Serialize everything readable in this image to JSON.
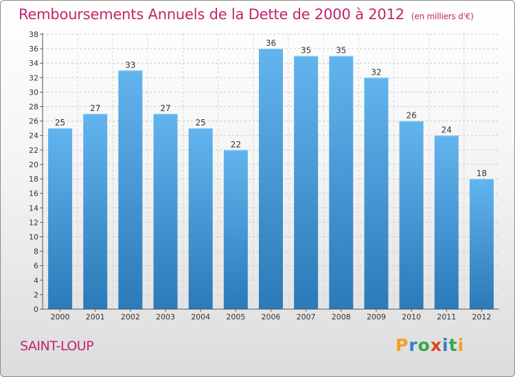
{
  "header": {
    "title": "Remboursements Annuels de la Dette de 2000 à 2012",
    "unit": "(en milliers d'€)"
  },
  "footer": {
    "commune": "SAINT-LOUP",
    "logo": [
      "P",
      "r",
      "o",
      "x",
      "i",
      "t",
      "i"
    ]
  },
  "colors": {
    "bar_top": "#62b4ee",
    "bar_bottom": "#2b7ab9",
    "title": "#c3236b"
  },
  "chart_data": {
    "type": "bar",
    "title": "Remboursements Annuels de la Dette de 2000 à 2012",
    "ylabel": "en milliers d'€",
    "xlabel": "",
    "categories": [
      "2000",
      "2001",
      "2002",
      "2003",
      "2004",
      "2005",
      "2006",
      "2007",
      "2008",
      "2009",
      "2010",
      "2011",
      "2012"
    ],
    "values": [
      25,
      27,
      33,
      27,
      25,
      22,
      36,
      35,
      35,
      32,
      26,
      24,
      18
    ],
    "ylim": [
      0,
      38
    ],
    "yticks": [
      0,
      2,
      4,
      6,
      8,
      10,
      12,
      14,
      16,
      18,
      20,
      22,
      24,
      26,
      28,
      30,
      32,
      34,
      36,
      38
    ],
    "grid": true
  }
}
